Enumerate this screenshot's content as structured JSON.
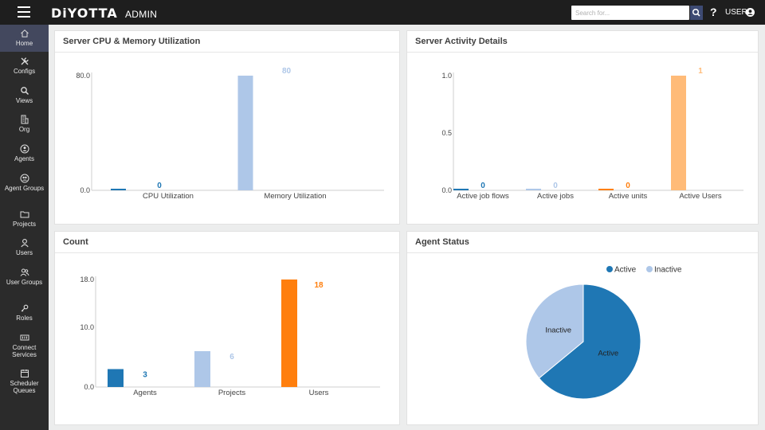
{
  "header": {
    "brand": "DiYOTTA",
    "brand_sub": "ADMIN",
    "search_placeholder": "Search for...",
    "help": "?",
    "user": "USER"
  },
  "sidebar": {
    "items": [
      {
        "label": "Home",
        "icon": "home-icon",
        "active": true
      },
      {
        "label": "Configs",
        "icon": "configs-icon",
        "active": false
      },
      {
        "label": "Views",
        "icon": "views-icon",
        "active": false
      },
      {
        "label": "Org",
        "icon": "org-icon",
        "active": false
      },
      {
        "label": "Agents",
        "icon": "agents-icon",
        "active": false
      },
      {
        "label": "Agent Groups",
        "icon": "agent-groups-icon",
        "active": false
      },
      {
        "label": "Projects",
        "icon": "folder-icon",
        "active": false
      },
      {
        "label": "Users",
        "icon": "user-icon",
        "active": false
      },
      {
        "label": "User Groups",
        "icon": "user-groups-icon",
        "active": false
      },
      {
        "label": "Roles",
        "icon": "key-icon",
        "active": false
      },
      {
        "label": "Connect Services",
        "icon": "connect-services-icon",
        "active": false
      },
      {
        "label": "Scheduler Queues",
        "icon": "scheduler-icon",
        "active": false
      }
    ]
  },
  "panels": {
    "cpu": {
      "title": "Server CPU & Memory Utilization"
    },
    "activity": {
      "title": "Server Activity Details"
    },
    "count": {
      "title": "Count"
    },
    "agent": {
      "title": "Agent Status"
    }
  },
  "colors": {
    "topbar": "#1e1e1e",
    "sidebar": "#2b2b2b",
    "sidebar_active": "#43485e",
    "blue_dark": "#1f77b4",
    "blue_light": "#aec7e8",
    "orange": "#ff7f0e",
    "orange_light": "#ffbb78"
  },
  "chart_data": [
    {
      "type": "bar",
      "title": "Server CPU & Memory Utilization",
      "categories": [
        "CPU Utilization",
        "Memory Utilization"
      ],
      "values": [
        0,
        80
      ],
      "data_labels": [
        "0",
        "80"
      ],
      "colors": [
        "#1f77b4",
        "#aec7e8"
      ],
      "ylim": [
        0,
        80
      ],
      "yticks": [
        "0.0",
        "80.0"
      ]
    },
    {
      "type": "bar",
      "title": "Server Activity Details",
      "categories": [
        "Active job flows",
        "Active jobs",
        "Active units",
        "Active Users"
      ],
      "values": [
        0,
        0,
        0,
        1
      ],
      "data_labels": [
        "0",
        "0",
        "0",
        "1"
      ],
      "colors": [
        "#1f77b4",
        "#aec7e8",
        "#ff7f0e",
        "#ffbb78"
      ],
      "ylim": [
        0,
        1
      ],
      "yticks": [
        "0.0",
        "0.5",
        "1.0"
      ]
    },
    {
      "type": "bar",
      "title": "Count",
      "categories": [
        "Agents",
        "Projects",
        "Users"
      ],
      "values": [
        3,
        6,
        18
      ],
      "data_labels": [
        "3",
        "6",
        "18"
      ],
      "colors": [
        "#1f77b4",
        "#aec7e8",
        "#ff7f0e"
      ],
      "ylim": [
        0,
        18
      ],
      "yticks": [
        "0.0",
        "10.0",
        "18.0"
      ]
    },
    {
      "type": "pie",
      "title": "Agent Status",
      "categories": [
        "Active",
        "Inactive"
      ],
      "values": [
        64,
        36
      ],
      "colors": [
        "#1f77b4",
        "#aec7e8"
      ],
      "legend": "top-right"
    }
  ]
}
